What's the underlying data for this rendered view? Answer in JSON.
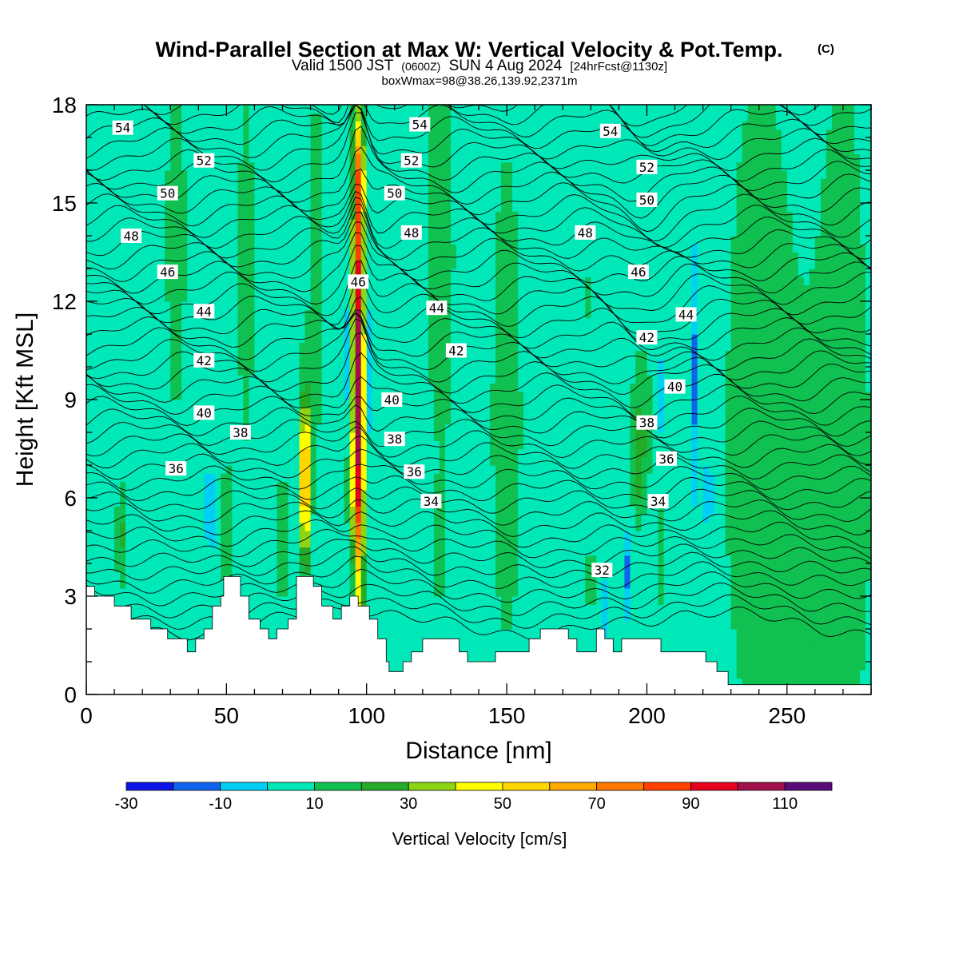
{
  "header": {
    "title": "Wind-Parallel Section at Max W: Vertical Velocity & Pot.Temp.",
    "copyright": "(C)",
    "valid_prefix": "Valid 1500 JST",
    "valid_utc": "(0600Z)",
    "valid_date": "SUN 4 Aug 2024",
    "forecast": "[24hrFcst@1130z]",
    "box_info": "boxWmax=98@38.26,139.92,2371m"
  },
  "chart_data": {
    "type": "heatmap",
    "description_type": "cross-section with filled contours of vertical velocity and line contours of potential temperature",
    "xlabel": "Distance [nm]",
    "ylabel": "Height [Kft MSL]",
    "xlim": [
      0,
      280
    ],
    "ylim": [
      0,
      18
    ],
    "x_ticks": [
      0,
      50,
      100,
      150,
      200,
      250
    ],
    "y_ticks": [
      0,
      3,
      6,
      9,
      12,
      15,
      18
    ],
    "colorbar": {
      "label": "Vertical Velocity [cm/s]",
      "bounds": [
        -30,
        -20,
        -10,
        0,
        10,
        20,
        30,
        40,
        50,
        60,
        70,
        80,
        90,
        100,
        110,
        120
      ],
      "tick_labels": [
        "-30",
        "-10",
        "10",
        "30",
        "50",
        "70",
        "90",
        "110"
      ],
      "tick_values": [
        -30,
        -10,
        10,
        30,
        50,
        70,
        90,
        110
      ],
      "colors": [
        "#0f14e6",
        "#0f64ee",
        "#00cff5",
        "#00e8b8",
        "#10c050",
        "#24ab28",
        "#8cd414",
        "#ffff00",
        "#ffd700",
        "#ffaa00",
        "#ff7800",
        "#ff4000",
        "#e6001e",
        "#a0104a",
        "#5a0a7a"
      ]
    },
    "updraft_peak": {
      "x": 97,
      "z_km_label": "2371m",
      "value": 98
    },
    "theta_labels": [
      {
        "text": "54",
        "x": 13,
        "y": 17.3
      },
      {
        "text": "54",
        "x": 119,
        "y": 17.4
      },
      {
        "text": "54",
        "x": 187,
        "y": 17.2
      },
      {
        "text": "52",
        "x": 42,
        "y": 16.3
      },
      {
        "text": "52",
        "x": 116,
        "y": 16.3
      },
      {
        "text": "52",
        "x": 200,
        "y": 16.1
      },
      {
        "text": "50",
        "x": 29,
        "y": 15.3
      },
      {
        "text": "50",
        "x": 110,
        "y": 15.3
      },
      {
        "text": "50",
        "x": 200,
        "y": 15.1
      },
      {
        "text": "48",
        "x": 16,
        "y": 14.0
      },
      {
        "text": "48",
        "x": 116,
        "y": 14.1
      },
      {
        "text": "48",
        "x": 178,
        "y": 14.1
      },
      {
        "text": "46",
        "x": 29,
        "y": 12.9
      },
      {
        "text": "46",
        "x": 97,
        "y": 12.6
      },
      {
        "text": "46",
        "x": 197,
        "y": 12.9
      },
      {
        "text": "44",
        "x": 42,
        "y": 11.7
      },
      {
        "text": "44",
        "x": 125,
        "y": 11.8
      },
      {
        "text": "44",
        "x": 214,
        "y": 11.6
      },
      {
        "text": "42",
        "x": 42,
        "y": 10.2
      },
      {
        "text": "42",
        "x": 132,
        "y": 10.5
      },
      {
        "text": "42",
        "x": 200,
        "y": 10.9
      },
      {
        "text": "40",
        "x": 42,
        "y": 8.6
      },
      {
        "text": "40",
        "x": 109,
        "y": 9.0
      },
      {
        "text": "40",
        "x": 210,
        "y": 9.4
      },
      {
        "text": "38",
        "x": 55,
        "y": 8.0
      },
      {
        "text": "38",
        "x": 110,
        "y": 7.8
      },
      {
        "text": "38",
        "x": 200,
        "y": 8.3
      },
      {
        "text": "36",
        "x": 32,
        "y": 6.9
      },
      {
        "text": "36",
        "x": 117,
        "y": 6.8
      },
      {
        "text": "36",
        "x": 207,
        "y": 7.2
      },
      {
        "text": "34",
        "x": 123,
        "y": 5.9
      },
      {
        "text": "34",
        "x": 204,
        "y": 5.9
      },
      {
        "text": "32",
        "x": 184,
        "y": 3.8
      }
    ],
    "terrain_profile": [
      [
        0,
        3.3
      ],
      [
        3,
        3.3
      ],
      [
        3,
        3.0
      ],
      [
        10,
        3.0
      ],
      [
        10,
        2.7
      ],
      [
        16,
        2.7
      ],
      [
        16,
        2.3
      ],
      [
        23,
        2.3
      ],
      [
        23,
        2.0
      ],
      [
        29,
        2.0
      ],
      [
        29,
        1.7
      ],
      [
        36,
        1.7
      ],
      [
        36,
        1.3
      ],
      [
        39,
        1.3
      ],
      [
        39,
        1.7
      ],
      [
        42,
        1.7
      ],
      [
        42,
        2.0
      ],
      [
        45,
        2.0
      ],
      [
        45,
        2.7
      ],
      [
        48,
        2.7
      ],
      [
        48,
        3.0
      ],
      [
        49,
        3.0
      ],
      [
        49,
        3.6
      ],
      [
        55,
        3.6
      ],
      [
        55,
        3.0
      ],
      [
        58,
        3.0
      ],
      [
        58,
        2.3
      ],
      [
        62,
        2.3
      ],
      [
        62,
        2.0
      ],
      [
        65,
        2.0
      ],
      [
        65,
        1.7
      ],
      [
        68,
        1.7
      ],
      [
        68,
        2.0
      ],
      [
        72,
        2.0
      ],
      [
        72,
        2.3
      ],
      [
        75,
        2.3
      ],
      [
        75,
        2.7
      ],
      [
        75,
        3.6
      ],
      [
        81,
        3.6
      ],
      [
        81,
        3.3
      ],
      [
        84,
        3.3
      ],
      [
        84,
        2.7
      ],
      [
        88,
        2.7
      ],
      [
        88,
        2.3
      ],
      [
        91,
        2.3
      ],
      [
        91,
        2.7
      ],
      [
        94,
        2.7
      ],
      [
        94,
        3.0
      ],
      [
        97,
        3.0
      ],
      [
        97,
        2.7
      ],
      [
        101,
        2.7
      ],
      [
        101,
        2.3
      ],
      [
        104,
        2.3
      ],
      [
        104,
        1.7
      ],
      [
        107,
        1.7
      ],
      [
        107,
        1.0
      ],
      [
        108,
        1.0
      ],
      [
        108,
        0.7
      ],
      [
        113,
        0.7
      ],
      [
        113,
        1.0
      ],
      [
        116,
        1.0
      ],
      [
        116,
        1.3
      ],
      [
        120,
        1.3
      ],
      [
        120,
        1.7
      ],
      [
        133,
        1.7
      ],
      [
        133,
        1.3
      ],
      [
        136,
        1.3
      ],
      [
        136,
        1.0
      ],
      [
        146,
        1.0
      ],
      [
        146,
        1.3
      ],
      [
        158,
        1.3
      ],
      [
        158,
        1.7
      ],
      [
        162,
        1.7
      ],
      [
        162,
        2.0
      ],
      [
        172,
        2.0
      ],
      [
        172,
        1.7
      ],
      [
        175,
        1.7
      ],
      [
        175,
        1.3
      ],
      [
        182,
        1.3
      ],
      [
        182,
        2.0
      ],
      [
        185,
        2.0
      ],
      [
        185,
        1.7
      ],
      [
        188,
        1.7
      ],
      [
        188,
        1.3
      ],
      [
        191,
        1.3
      ],
      [
        191,
        1.7
      ],
      [
        205,
        1.7
      ],
      [
        205,
        1.3
      ],
      [
        221,
        1.3
      ],
      [
        221,
        1.0
      ],
      [
        225,
        1.0
      ],
      [
        225,
        0.7
      ],
      [
        229,
        0.7
      ],
      [
        229,
        0.3
      ],
      [
        280,
        0.3
      ]
    ]
  }
}
